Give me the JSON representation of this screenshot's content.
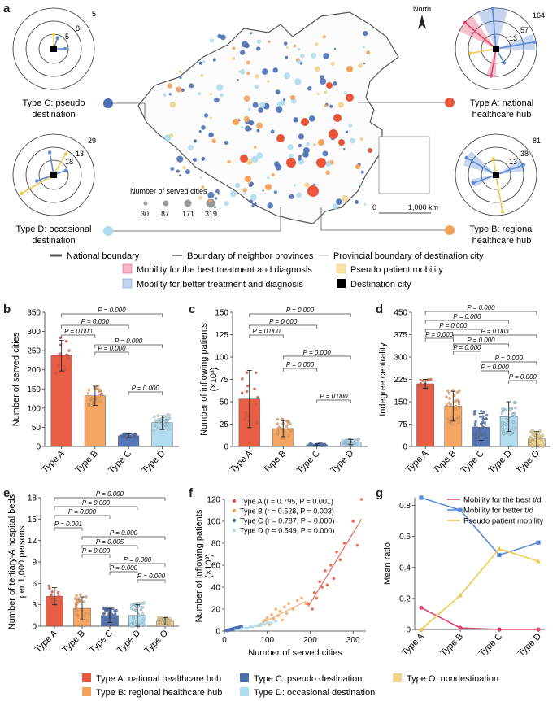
{
  "panel_labels": {
    "a": "a",
    "b": "b",
    "c": "c",
    "d": "d",
    "e": "e",
    "f": "f",
    "g": "g"
  },
  "colors": {
    "A": "#e8553a",
    "B": "#f4a25a",
    "C": "#4a6fb5",
    "D": "#aedcf0",
    "O": "#f1d38d",
    "best": "#e0436b",
    "better": "#5b8ad6",
    "pseudo": "#f2c94c",
    "dest": "#000000"
  },
  "map": {
    "north_label": "North",
    "scale_zero": "0",
    "scale_km": "1,000 km",
    "size_legend_title": "Number of served cities",
    "size_legend_values": [
      "30",
      "87",
      "171",
      "319"
    ],
    "legend_lines": [
      "National boundary",
      "Boundary of neighbor provinces",
      "Provincial boundary of destination city"
    ],
    "legend_mobility": [
      "Mobility for the best treatment and diagnosis",
      "Pseudo patient mobility",
      "Mobility for better treatment and diagnosis",
      "Destination city"
    ]
  },
  "radars": {
    "C": {
      "label1": "Type C: pseudo",
      "label2": "destination",
      "rings": [
        "5",
        "8",
        "5"
      ]
    },
    "D": {
      "label1": "Type D: occasional",
      "label2": "destination",
      "rings": [
        "29",
        "13",
        "18"
      ]
    },
    "A": {
      "label1": "Type A: national",
      "label2": "healthcare hub",
      "rings": [
        "164",
        "57",
        "13"
      ]
    },
    "B": {
      "label1": "Type B: regional",
      "label2": "healthcare hub",
      "rings": [
        "81",
        "38",
        "13"
      ]
    }
  },
  "chart_data": [
    {
      "id": "b",
      "type": "bar",
      "ylabel": "Number of served cities",
      "categories": [
        "Type A",
        "Type B",
        "Type C",
        "Type D"
      ],
      "values": [
        237,
        132,
        28,
        62
      ],
      "errors": [
        40,
        25,
        5,
        18
      ],
      "ylim": [
        0,
        350
      ],
      "yticks": [
        0,
        50,
        100,
        150,
        200,
        250,
        300,
        350
      ],
      "pvalues": [
        "P = 0.000",
        "P = 0.000",
        "P = 0.000",
        "P = 0.000",
        "P = 0.000",
        "P = 0.000"
      ]
    },
    {
      "id": "c",
      "type": "bar",
      "ylabel": "Number of inflowing patients",
      "ylabel2": "(×10³)",
      "categories": [
        "Type A",
        "Type B",
        "Type C",
        "Type D"
      ],
      "values": [
        53,
        20,
        2,
        5
      ],
      "errors": [
        32,
        9,
        1,
        3
      ],
      "ylim": [
        0,
        150
      ],
      "yticks": [
        0,
        25,
        50,
        75,
        100,
        125,
        150
      ],
      "pvalues": [
        "P = 0.000",
        "P = 0.000",
        "P = 0.000",
        "P = 0.000",
        "P = 0.000",
        "P = 0.000"
      ]
    },
    {
      "id": "d",
      "type": "bar",
      "ylabel": "Indegree centrality",
      "categories": [
        "Type A",
        "Type B",
        "Type C",
        "Type D",
        "Type O"
      ],
      "values": [
        210,
        135,
        65,
        100,
        25
      ],
      "errors": [
        15,
        50,
        45,
        50,
        25
      ],
      "ylim": [
        0,
        450
      ],
      "yticks": [
        0,
        75,
        150,
        225,
        300,
        375,
        450
      ],
      "pvalues": [
        "P = 0.000",
        "P = 0.000",
        "P = 0.000",
        "P = 0.000",
        "P = 0.000",
        "P = 0.000",
        "P = 0.003",
        "P = 0.000",
        "P = 0.000",
        "P = 0.000"
      ]
    },
    {
      "id": "e",
      "type": "bar",
      "ylabel": "Number of tertiary-A hospital beds",
      "ylabel2": "per 1,000 persons",
      "categories": [
        "Type A",
        "Type B",
        "Type C",
        "Type D",
        "Type O"
      ],
      "values": [
        4.2,
        2.5,
        1.5,
        1.5,
        0.7
      ],
      "errors": [
        1.2,
        1.6,
        1.0,
        1.5,
        0.5
      ],
      "ylim": [
        0,
        18
      ],
      "yticks": [
        0,
        3,
        6,
        9,
        12,
        15,
        18
      ],
      "pvalues": [
        "P = 0.000",
        "P = 0.000",
        "P = 0.000",
        "P = 0.001",
        "P = 0.000",
        "P = 0.005",
        "P = 0.000",
        "P = 0.000",
        "P = 0.000",
        "P = 0.000"
      ]
    },
    {
      "id": "f",
      "type": "scatter",
      "xlabel": "Number of served cities",
      "ylabel": "Number of inflowing patients",
      "ylabel2": "(×10³)",
      "xlim": [
        0,
        330
      ],
      "xticks": [
        0,
        100,
        200,
        300
      ],
      "ylim": [
        0,
        120
      ],
      "yticks": [
        0,
        20,
        40,
        60,
        80,
        100,
        120
      ],
      "legend": [
        "Type A (r = 0.795, P = 0.001)",
        "Type B (r = 0.528, P = 0.003)",
        "Type C (r = 0.787, P = 0.000)",
        "Type D (r = 0.549, P = 0.000)"
      ],
      "series": [
        {
          "name": "Type A",
          "x": [
            195,
            205,
            210,
            215,
            222,
            228,
            235,
            240,
            248,
            255,
            262,
            270,
            280,
            300,
            310,
            320
          ],
          "y": [
            25,
            20,
            35,
            30,
            45,
            40,
            55,
            42,
            60,
            48,
            72,
            65,
            80,
            100,
            78,
            120
          ]
        },
        {
          "name": "Type B",
          "x": [
            80,
            90,
            95,
            100,
            105,
            110,
            115,
            120,
            125,
            130,
            135,
            140,
            145,
            150,
            160,
            170,
            180,
            190
          ],
          "y": [
            5,
            8,
            10,
            12,
            6,
            15,
            11,
            20,
            14,
            18,
            10,
            22,
            16,
            25,
            20,
            28,
            30,
            25
          ]
        },
        {
          "name": "Type C",
          "x": [
            5,
            8,
            10,
            12,
            15,
            18,
            20,
            22,
            25,
            28,
            30,
            32,
            35,
            38,
            40
          ],
          "y": [
            0.5,
            0.8,
            1,
            1.2,
            1.5,
            1.8,
            2,
            2.2,
            2.5,
            2.8,
            3,
            3.1,
            3.5,
            3.8,
            4
          ]
        },
        {
          "name": "Type D",
          "x": [
            30,
            40,
            50,
            55,
            60,
            65,
            70,
            75,
            80,
            85,
            90,
            95,
            100,
            110,
            120
          ],
          "y": [
            1,
            2,
            3,
            2.5,
            4,
            3.5,
            5,
            4.5,
            6,
            5,
            7,
            6,
            8,
            7,
            9
          ]
        }
      ],
      "fits": [
        {
          "x": [
            195,
            320
          ],
          "y": [
            22,
            102
          ]
        },
        {
          "x": [
            80,
            190
          ],
          "y": [
            6,
            27
          ]
        },
        {
          "x": [
            5,
            42
          ],
          "y": [
            0.4,
            4
          ]
        },
        {
          "x": [
            30,
            120
          ],
          "y": [
            1,
            9
          ]
        }
      ]
    },
    {
      "id": "g",
      "type": "line",
      "ylabel": "Mean ratio",
      "categories": [
        "Type A",
        "Type B",
        "Type C",
        "Type D"
      ],
      "ylim": [
        0,
        0.85
      ],
      "yticks": [
        0,
        0.2,
        0.4,
        0.6,
        0.8
      ],
      "ytick_labels": [
        "0",
        "0.2",
        "0.4",
        "0.6",
        "0.8"
      ],
      "series": [
        {
          "name": "Mobility for the best t/d",
          "values": [
            0.14,
            0.01,
            0.0,
            0.0
          ]
        },
        {
          "name": "Mobility for better t/d",
          "values": [
            0.85,
            0.77,
            0.48,
            0.56
          ]
        },
        {
          "name": "Pseudo patient mobility",
          "values": [
            0.0,
            0.22,
            0.52,
            0.44
          ]
        }
      ]
    }
  ],
  "bottom_legend": [
    "Type A: national healthcare hub",
    "Type C: pseudo destination",
    "Type O: nondestination",
    "Type B: regional healthcare hub",
    "Type D: occasional destination"
  ]
}
